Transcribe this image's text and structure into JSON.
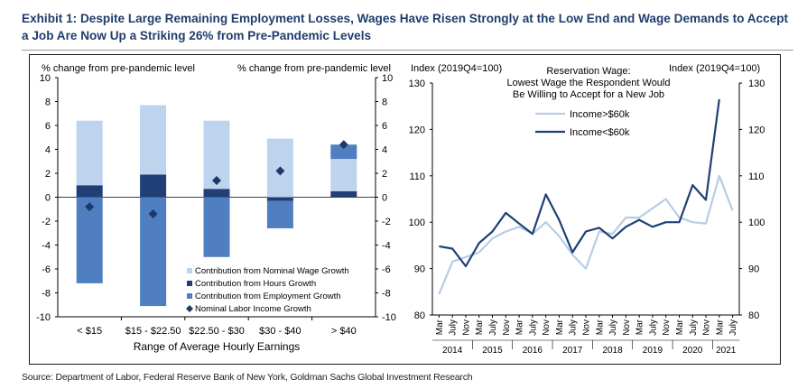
{
  "title": "Exhibit 1: Despite Large Remaining Employment Losses, Wages Have Risen Strongly at the Low End and Wage Demands to Accept a Job Are Now Up a Striking 26% from Pre-Pandemic Levels",
  "source": "Source: Department of Labor, Federal Reserve Bank of New York, Goldman Sachs Global Investment Research",
  "colors": {
    "nominal_wage": "#bed3ed",
    "hours": "#1f3f76",
    "employment": "#4f7fc0",
    "diamond": "#1c3a63",
    "line_high": "#b6cde8",
    "line_low": "#1f3f76"
  },
  "chart_data": [
    {
      "type": "bar",
      "stacked": true,
      "categories": [
        "< $15",
        "$15 - $22.50",
        "$22.50 - $30",
        "$30 - $40",
        "> $40"
      ],
      "xlabel": "Range of Average Hourly Earnings",
      "ylabel_left": "% change from pre-pandemic level",
      "ylabel_right": "% change from pre-pandemic level",
      "ylim": [
        -10,
        10
      ],
      "yticks": [
        -10,
        -8,
        -6,
        -4,
        -2,
        0,
        2,
        4,
        6,
        8,
        10
      ],
      "series": [
        {
          "name": "Contribution from Nominal Wage Growth",
          "values": [
            5.4,
            5.8,
            5.7,
            4.9,
            2.7
          ]
        },
        {
          "name": "Contribution from Hours Growth",
          "values": [
            1.0,
            1.9,
            0.7,
            -0.3,
            0.5
          ]
        },
        {
          "name": "Contribution from Employment Growth",
          "values": [
            -7.2,
            -9.1,
            -5.0,
            -2.3,
            1.2
          ]
        }
      ],
      "markers": {
        "name": "Nominal Labor Income Growth",
        "values": [
          -0.8,
          -1.4,
          1.4,
          2.2,
          4.4
        ]
      },
      "legend": [
        "Contribution from Nominal Wage Growth",
        "Contribution from Hours Growth",
        "Contribution from Employment Growth",
        "Nominal Labor Income Growth"
      ]
    },
    {
      "type": "line",
      "title": "Reservation Wage: Lowest Wage the Respondent Would Be Willing to Accept for a New Job",
      "ylabel_left": "Index (2019Q4=100)",
      "ylabel_right": "Index (2019Q4=100)",
      "ylim": [
        80,
        130
      ],
      "yticks": [
        80,
        90,
        100,
        110,
        120,
        130
      ],
      "x_ticks": [
        "Mar",
        "July",
        "Nov",
        "Mar",
        "July",
        "Nov",
        "Mar",
        "July",
        "Nov",
        "Mar",
        "July",
        "Nov",
        "Mar",
        "July",
        "Nov",
        "Mar",
        "July",
        "Nov",
        "Mar",
        "July",
        "Nov",
        "Mar",
        "July"
      ],
      "years": [
        "2014",
        "2015",
        "2016",
        "2017",
        "2018",
        "2019",
        "2020",
        "2021"
      ],
      "series": [
        {
          "name": "Income>$60k",
          "values": [
            84.5,
            91.5,
            92.5,
            93.5,
            96.5,
            98.0,
            99.0,
            97.5,
            100.0,
            97.0,
            93.0,
            90.0,
            98.0,
            97.5,
            101.0,
            101.0,
            103.0,
            105.0,
            101.0,
            100.0,
            99.7,
            110.0,
            102.5
          ]
        },
        {
          "name": "Income<$60k",
          "values": [
            94.8,
            94.3,
            90.5,
            95.5,
            98.0,
            102.0,
            99.7,
            97.5,
            106.0,
            100.5,
            93.5,
            98.0,
            98.8,
            96.5,
            99.0,
            100.5,
            99.0,
            100.0,
            100.0,
            108.0,
            104.8,
            126.5,
            null
          ]
        }
      ],
      "legend": [
        "Income>$60k",
        "Income<$60k"
      ]
    }
  ]
}
